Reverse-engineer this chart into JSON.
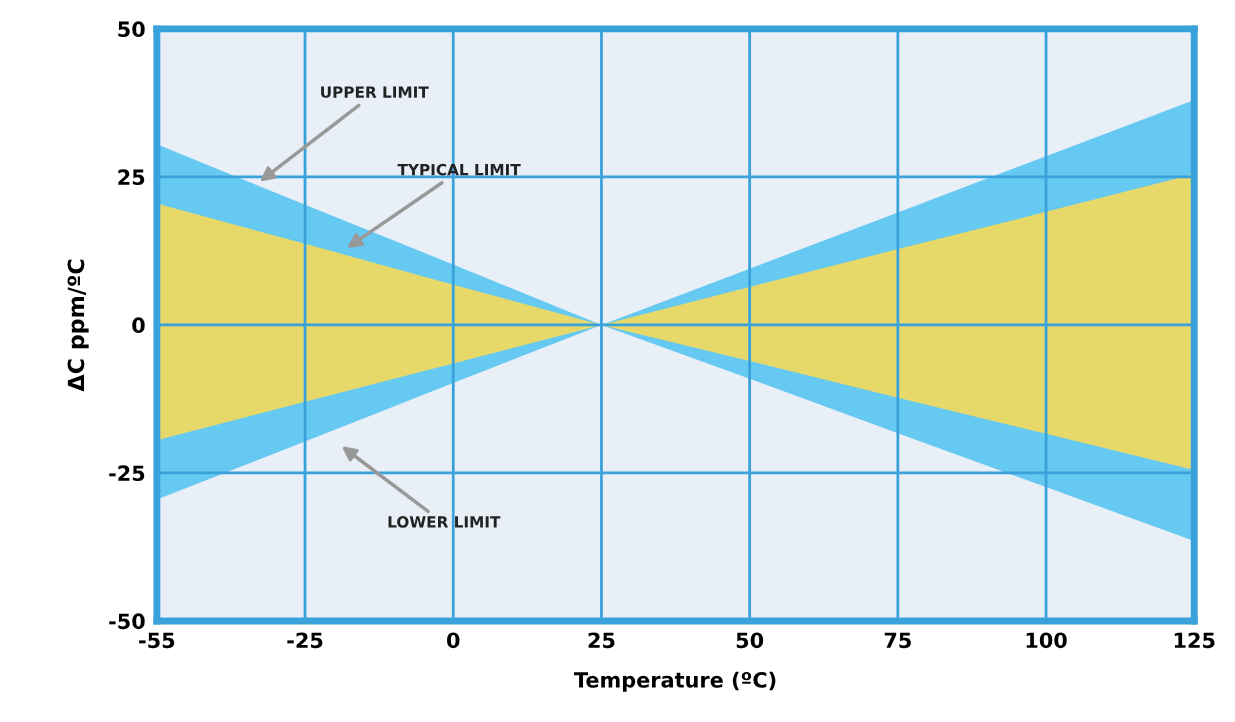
{
  "chart_data": {
    "type": "area",
    "xlabel": "Temperature (ºC)",
    "ylabel": "ΔC ppm/ºC",
    "categories": [
      "-55",
      "-25",
      "0",
      "25",
      "50",
      "75",
      "100",
      "125"
    ],
    "series": [
      {
        "color": "#66c9f2",
        "values": [
          30.5,
          20.3,
          10.2,
          0,
          9.5,
          19,
          28.5,
          38
        ]
      },
      {
        "color": "#66c9f2",
        "values": [
          -29.5,
          -19.7,
          -9.8,
          0,
          -9.1,
          -18.3,
          -27.4,
          -36.5
        ]
      },
      {
        "color": "#e6d96a",
        "values": [
          20.5,
          13.7,
          6.8,
          0,
          6.4,
          12.8,
          19.1,
          25.5
        ]
      },
      {
        "color": "#e6d96a",
        "values": [
          -19.5,
          -13,
          -6.5,
          0,
          -6.1,
          -12.3,
          -18.4,
          -24.5
        ]
      }
    ],
    "ylim": [
      -50,
      50
    ],
    "yticks": [
      -50,
      -25,
      0,
      25,
      50
    ],
    "grid": true,
    "annotations": [
      "UPPER LIMIT",
      "TYPICAL LIMIT",
      "LOWER LIMIT"
    ]
  }
}
